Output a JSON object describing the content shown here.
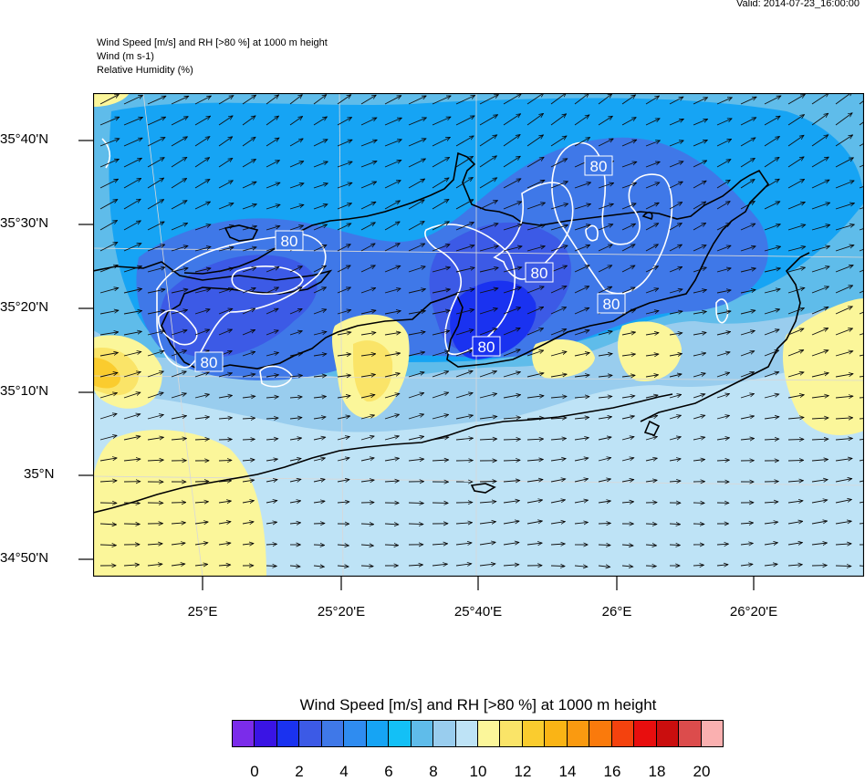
{
  "header": {
    "valid": "Valid: 2014-07-23_16:00:00",
    "title_line1": "Wind Speed [m/s] and RH [>80 %] at 1000 m height",
    "title_line2": "Wind   (m s-1)",
    "title_line3": "Relative Humidity   (%)"
  },
  "map": {
    "lat_labels": [
      "35°40'N",
      "35°30'N",
      "35°20'N",
      "35°10'N",
      "35°N",
      "34°50'N"
    ],
    "lon_labels": [
      "25°E",
      "25°20'E",
      "25°40'E",
      "26°E",
      "26°20'E"
    ],
    "contour_value": "80",
    "contour_labels": [
      "80",
      "80",
      "80",
      "80",
      "80",
      "80"
    ]
  },
  "legend": {
    "title": "Wind Speed [m/s] and RH [>80 %] at 1000 m height",
    "colors": [
      "#7b2cea",
      "#3a14e4",
      "#1a32f0",
      "#3c5ae6",
      "#3f78e8",
      "#2f8cf0",
      "#16a4f4",
      "#13c0f6",
      "#5fbcea",
      "#99cdee",
      "#bee3f6",
      "#fbf69a",
      "#fae468",
      "#facc2e",
      "#fab415",
      "#fa9a10",
      "#fa7a0c",
      "#f4420e",
      "#e80e0e",
      "#ca0e0e",
      "#dc4c4c",
      "#fab0b0"
    ],
    "labels": [
      "0",
      "2",
      "4",
      "6",
      "8",
      "10",
      "12",
      "14",
      "16",
      "18",
      "20"
    ]
  }
}
